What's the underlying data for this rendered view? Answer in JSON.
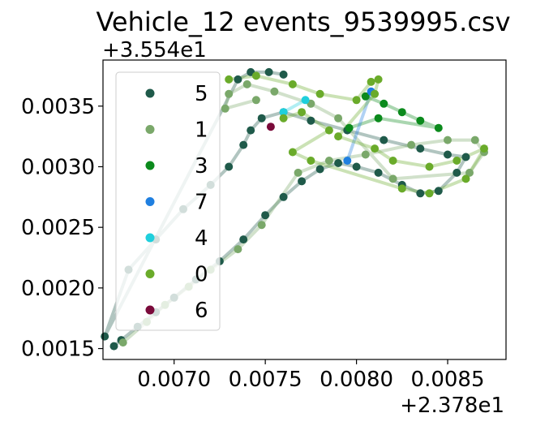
{
  "chart_data": {
    "type": "scatter",
    "title": "Vehicle_12 events_9539995.csv",
    "xlabel": "",
    "ylabel": "",
    "x_offset_label": "+2.378e1",
    "y_offset_label": "+3.554e1",
    "x_offset": 23.78,
    "y_offset": 35.54,
    "xlim": [
      0.00661,
      0.00882
    ],
    "ylim": [
      0.00141,
      0.00388
    ],
    "x_ticks": [
      0.007,
      0.0075,
      0.008,
      0.0085
    ],
    "x_tick_labels": [
      "0.0070",
      "0.0075",
      "0.0080",
      "0.0085"
    ],
    "y_ticks": [
      0.0015,
      0.002,
      0.0025,
      0.003,
      0.0035
    ],
    "y_tick_labels": [
      "0.0015",
      "0.0020",
      "0.0025",
      "0.0030",
      "0.0035"
    ],
    "grid": false,
    "legend_position": "upper-left",
    "series": [
      {
        "name": "5",
        "color": "#1f5a4a",
        "points": [
          [
            0.00667,
            0.00152
          ],
          [
            0.00671,
            0.00157
          ],
          [
            0.0068,
            0.00168
          ],
          [
            0.0069,
            0.0018
          ],
          [
            0.007,
            0.00192
          ],
          [
            0.00712,
            0.00207
          ],
          [
            0.00725,
            0.00222
          ],
          [
            0.00738,
            0.0024
          ],
          [
            0.0075,
            0.0026
          ],
          [
            0.0076,
            0.00275
          ],
          [
            0.0077,
            0.00288
          ],
          [
            0.0078,
            0.00298
          ],
          [
            0.0079,
            0.00303
          ],
          [
            0.008,
            0.003
          ],
          [
            0.00812,
            0.00295
          ],
          [
            0.00825,
            0.00285
          ],
          [
            0.00835,
            0.00278
          ],
          [
            0.00845,
            0.0028
          ],
          [
            0.00855,
            0.00295
          ],
          [
            0.0086,
            0.00308
          ],
          [
            0.0085,
            0.0031
          ],
          [
            0.00835,
            0.00315
          ],
          [
            0.00815,
            0.00322
          ],
          [
            0.00795,
            0.0033
          ],
          [
            0.00775,
            0.00338
          ],
          [
            0.0076,
            0.00345
          ],
          [
            0.00748,
            0.0034
          ],
          [
            0.00742,
            0.0033
          ],
          [
            0.00738,
            0.00318
          ],
          [
            0.0073,
            0.003
          ],
          [
            0.0072,
            0.00285
          ],
          [
            0.00705,
            0.00265
          ],
          [
            0.0069,
            0.0024
          ],
          [
            0.00675,
            0.00215
          ],
          [
            0.00662,
            0.0016
          ],
          [
            0.00735,
            0.00372
          ],
          [
            0.00742,
            0.00378
          ],
          [
            0.00752,
            0.00378
          ],
          [
            0.0076,
            0.00376
          ]
        ]
      },
      {
        "name": "1",
        "color": "#7aa86a",
        "points": [
          [
            0.00672,
            0.00155
          ],
          [
            0.00685,
            0.00172
          ],
          [
            0.00695,
            0.00186
          ],
          [
            0.00708,
            0.00201
          ],
          [
            0.0072,
            0.00215
          ],
          [
            0.00735,
            0.00232
          ],
          [
            0.00748,
            0.00252
          ],
          [
            0.00768,
            0.00295
          ],
          [
            0.00785,
            0.00305
          ],
          [
            0.00805,
            0.0031
          ],
          [
            0.0083,
            0.00318
          ],
          [
            0.0085,
            0.00322
          ],
          [
            0.00865,
            0.00322
          ],
          [
            0.0087,
            0.00312
          ],
          [
            0.00862,
            0.00295
          ],
          [
            0.0082,
            0.0029
          ],
          [
            0.0079,
            0.0034
          ],
          [
            0.00775,
            0.00352
          ],
          [
            0.00755,
            0.00362
          ],
          [
            0.0074,
            0.00368
          ],
          [
            0.0073,
            0.0036
          ],
          [
            0.00728,
            0.00348
          ],
          [
            0.00745,
            0.00355
          ]
        ]
      },
      {
        "name": "3",
        "color": "#0b8a1c",
        "points": [
          [
            0.00805,
            0.00358
          ],
          [
            0.00815,
            0.00352
          ],
          [
            0.00825,
            0.00345
          ],
          [
            0.00835,
            0.00338
          ],
          [
            0.00845,
            0.00332
          ],
          [
            0.00812,
            0.0034
          ],
          [
            0.00796,
            0.00332
          ]
        ]
      },
      {
        "name": "7",
        "color": "#1f7fe0",
        "points": [
          [
            0.00808,
            0.00362
          ],
          [
            0.00795,
            0.00305
          ]
        ]
      },
      {
        "name": "4",
        "color": "#1fcfdc",
        "points": [
          [
            0.0076,
            0.00345
          ],
          [
            0.00772,
            0.00355
          ]
        ]
      },
      {
        "name": "0",
        "color": "#6aab2a",
        "points": [
          [
            0.0073,
            0.00372
          ],
          [
            0.00745,
            0.00375
          ],
          [
            0.00765,
            0.00368
          ],
          [
            0.0078,
            0.0036
          ],
          [
            0.008,
            0.00355
          ],
          [
            0.00808,
            0.0037
          ],
          [
            0.00812,
            0.00372
          ],
          [
            0.0081,
            0.0036
          ],
          [
            0.0079,
            0.00325
          ],
          [
            0.0081,
            0.00315
          ],
          [
            0.0082,
            0.00305
          ],
          [
            0.0084,
            0.003
          ],
          [
            0.00855,
            0.00305
          ],
          [
            0.0087,
            0.00315
          ],
          [
            0.0086,
            0.0029
          ],
          [
            0.0084,
            0.00278
          ],
          [
            0.00825,
            0.00282
          ],
          [
            0.00775,
            0.00305
          ],
          [
            0.00765,
            0.00312
          ],
          [
            0.00785,
            0.0033
          ],
          [
            0.0077,
            0.00345
          ],
          [
            0.0076,
            0.0034
          ]
        ]
      },
      {
        "name": "6",
        "color": "#7a0a3a",
        "points": [
          [
            0.00753,
            0.00333
          ]
        ]
      }
    ]
  }
}
